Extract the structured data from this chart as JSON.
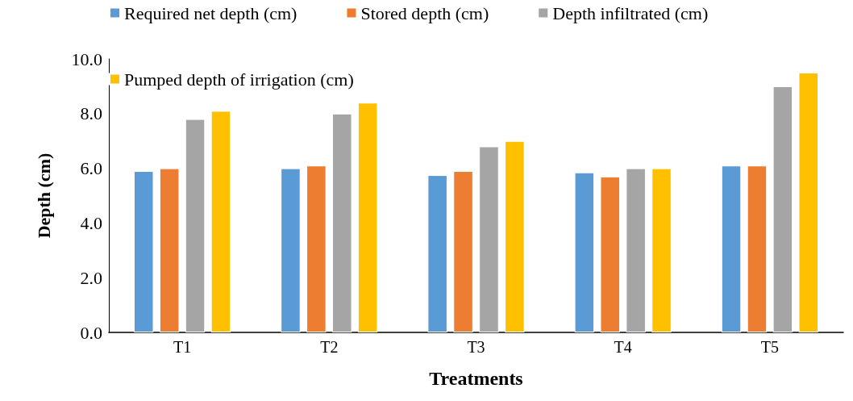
{
  "chart_data": {
    "type": "bar",
    "xlabel": "Treatments",
    "ylabel": "Depth (cm)",
    "categories": [
      "T1",
      "T2",
      "T3",
      "T4",
      "T5"
    ],
    "series": [
      {
        "name": "Required net depth (cm)",
        "color": "#5b9bd5",
        "values": [
          5.9,
          6.0,
          5.75,
          5.85,
          6.1
        ]
      },
      {
        "name": "Stored depth (cm)",
        "color": "#ed7d31",
        "values": [
          6.0,
          6.1,
          5.9,
          5.7,
          6.1
        ]
      },
      {
        "name": "Depth infiltrated (cm)",
        "color": "#a5a5a5",
        "values": [
          7.8,
          8.0,
          6.8,
          6.0,
          9.0
        ]
      },
      {
        "name": "Pumped depth of irrigation (cm)",
        "color": "#ffc000",
        "values": [
          8.1,
          8.4,
          7.0,
          6.0,
          9.5
        ]
      }
    ],
    "ylim": [
      0,
      10
    ],
    "yticks": [
      {
        "value": 0,
        "label": "0.0"
      },
      {
        "value": 2,
        "label": "2.0"
      },
      {
        "value": 4,
        "label": "4.0"
      },
      {
        "value": 6,
        "label": "6.0"
      },
      {
        "value": 8,
        "label": "8.0"
      },
      {
        "value": 10,
        "label": "10.0"
      }
    ],
    "grid": false,
    "legend": "top"
  }
}
